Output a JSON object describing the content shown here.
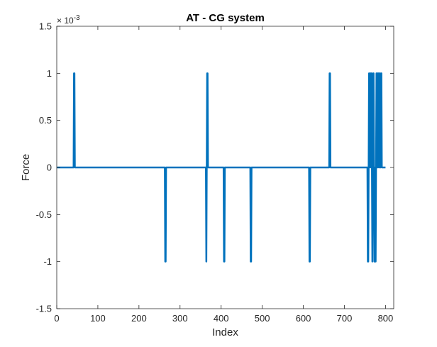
{
  "chart_data": {
    "type": "line",
    "title": "AT - CG system",
    "xlabel": "Index",
    "ylabel": "Force",
    "exponent_label": "× 10",
    "exponent_value": "-3",
    "y_scale_factor": 0.001,
    "xlim": [
      0,
      820
    ],
    "ylim": [
      -1.5,
      1.5
    ],
    "x_ticks": [
      0,
      100,
      200,
      300,
      400,
      500,
      600,
      700,
      800
    ],
    "y_ticks": [
      -1.5,
      -1,
      -0.5,
      0,
      0.5,
      1,
      1.5
    ],
    "x_tick_labels": [
      "0",
      "100",
      "200",
      "300",
      "400",
      "500",
      "600",
      "700",
      "800"
    ],
    "y_tick_labels": [
      "-1.5",
      "-1",
      "-0.5",
      "0",
      "0.5",
      "1",
      "1.5"
    ],
    "grid": false,
    "line_color": "#0072BD",
    "series": [
      {
        "x": [
          1,
          41,
          42,
          43,
          44,
          263,
          264,
          265,
          266,
          363,
          364,
          365,
          366,
          367,
          368,
          406,
          407,
          408,
          409,
          471,
          472,
          473,
          474,
          614,
          615,
          616,
          617,
          663,
          664,
          665,
          666,
          756,
          757,
          758,
          759,
          760,
          761,
          762,
          763,
          764,
          765,
          766,
          767,
          768,
          769,
          770,
          771,
          772,
          773,
          774,
          775,
          776,
          777,
          778,
          779,
          780,
          781,
          782,
          783,
          784,
          785,
          786,
          787,
          788,
          789,
          790,
          791,
          792,
          793,
          794,
          795,
          796,
          797,
          798,
          799,
          800
        ],
        "values": [
          0,
          0,
          1,
          1,
          0,
          0,
          -1,
          -1,
          0,
          0,
          -1,
          0,
          1,
          1,
          0,
          0,
          -1,
          -1,
          0,
          0,
          -1,
          -1,
          0,
          0,
          -1,
          -1,
          0,
          0,
          1,
          1,
          0,
          0,
          -1,
          -1,
          0,
          1,
          0,
          1,
          1,
          0,
          1,
          1,
          0,
          -1,
          0,
          1,
          1,
          0,
          -1,
          -1,
          0,
          -1,
          0,
          1,
          1,
          0,
          1,
          0,
          1,
          1,
          0,
          1,
          0,
          0,
          1,
          1,
          0,
          0,
          0,
          0,
          0,
          0,
          0,
          0,
          0,
          0
        ]
      }
    ]
  }
}
